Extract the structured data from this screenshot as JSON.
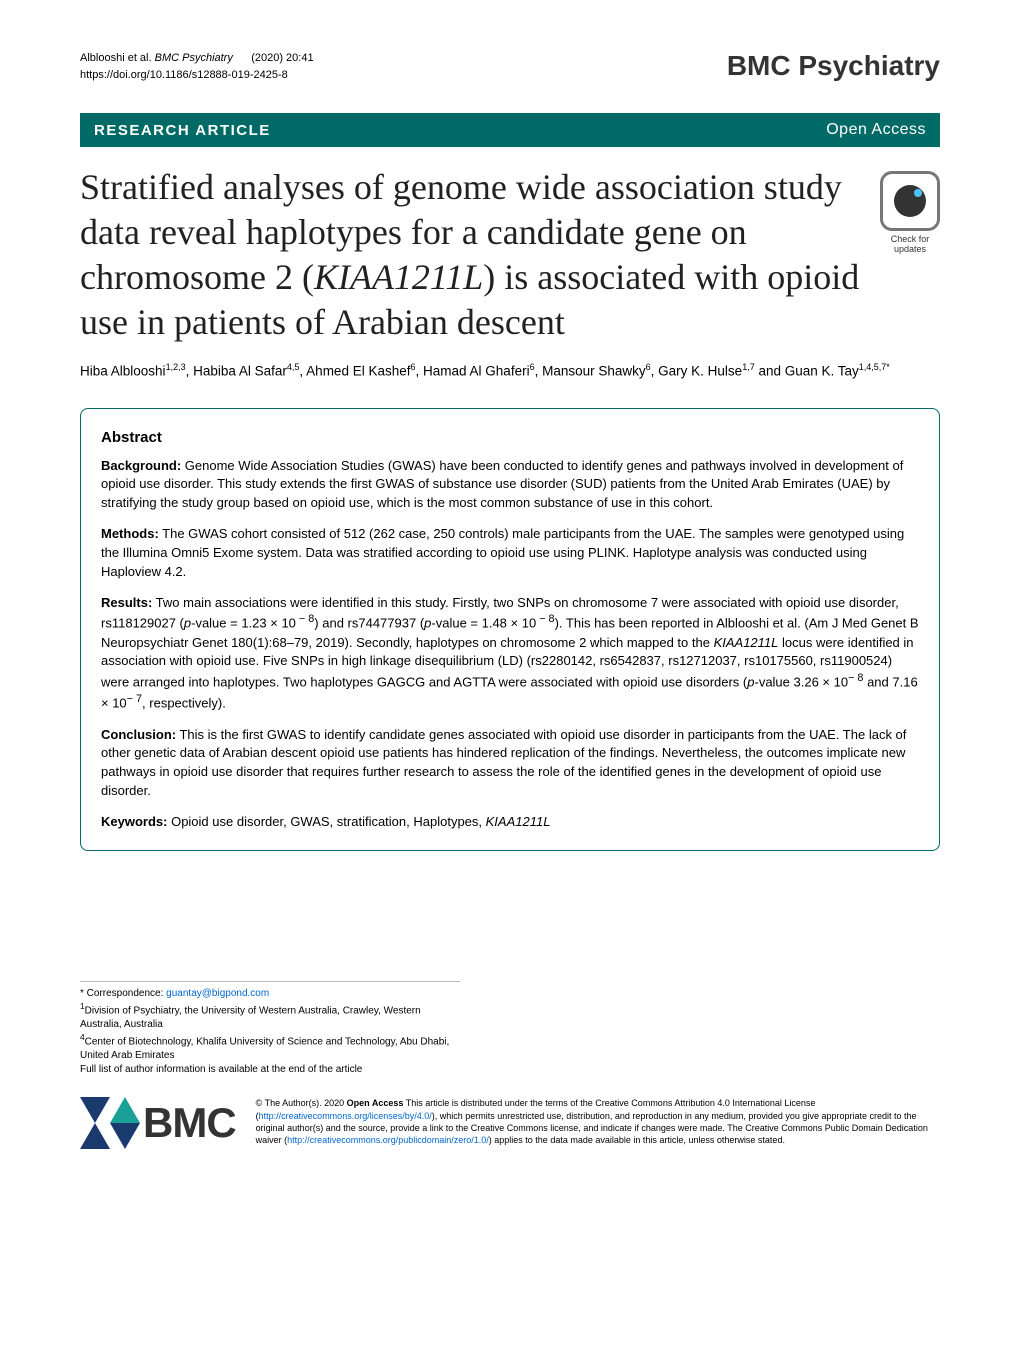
{
  "header": {
    "citation_authors": "Alblooshi et al.",
    "journal_name": "BMC Psychiatry",
    "citation_year_vol": "(2020) 20:41",
    "doi": "https://doi.org/10.1186/s12888-019-2425-8",
    "journal_logo": "BMC Psychiatry"
  },
  "article_bar": {
    "type": "RESEARCH ARTICLE",
    "access": "Open Access"
  },
  "title": {
    "line1": "Stratified analyses of genome wide association study data reveal haplotypes for a candidate gene on chromosome 2 (",
    "gene": "KIAA1211L",
    "line2": ") is associated with opioid use in patients of Arabian descent"
  },
  "check_updates": {
    "line1": "Check for",
    "line2": "updates"
  },
  "authors": "Hiba Alblooshi",
  "authors_rest": ", Habiba Al Safar",
  "authors_sup1": "1,2,3",
  "authors_sup2": "4,5",
  "authors_name3": ", Ahmed El Kashef",
  "authors_sup3": "6",
  "authors_name4": ", Hamad Al Ghaferi",
  "authors_sup4": "6",
  "authors_name5": ", Mansour Shawky",
  "authors_sup5": "6",
  "authors_name6": ", Gary K. Hulse",
  "authors_sup6": "1,7",
  "authors_and": " and Guan K. Tay",
  "authors_sup7": "1,4,5,7*",
  "abstract": {
    "heading": "Abstract",
    "bg_label": "Background:",
    "bg": " Genome Wide Association Studies (GWAS) have been conducted to identify genes and pathways involved in development of opioid use disorder. This study extends the first GWAS of substance use disorder (SUD) patients from the United Arab Emirates (UAE) by stratifying the study group based on opioid use, which is the most common substance of use in this cohort.",
    "methods_label": "Methods:",
    "methods": " The GWAS cohort consisted of 512 (262 case, 250 controls) male participants from the UAE. The samples were genotyped using the Illumina Omni5 Exome system. Data was stratified according to opioid use using PLINK. Haplotype analysis was conducted using Haploview 4.2.",
    "results_label": "Results:",
    "results_p1": " Two main associations were identified in this study. Firstly, two SNPs on chromosome 7 were associated with opioid use disorder, rs118129027 (",
    "results_pv1": "p",
    "results_p2": "-value = 1.23 × 10",
    "results_exp1": " − 8",
    "results_p3": ") and rs74477937 (",
    "results_pv2": "p",
    "results_p4": "-value = 1.48 × 10",
    "results_exp2": " − 8",
    "results_p5": "). This has been reported in Alblooshi et al. (Am J Med Genet B Neuropsychiatr Genet 180(1):68–79, 2019). Secondly, haplotypes on chromosome 2 which mapped to the ",
    "results_gene": "KIAA1211L",
    "results_p6": " locus were identified in association with opioid use. Five SNPs in high linkage disequilibrium (LD) (rs2280142, rs6542837, rs12712037, rs10175560, rs11900524) were arranged into haplotypes. Two haplotypes GAGCG and AGTTA were associated with opioid use disorders (",
    "results_pv3": "p",
    "results_p7": "-value 3.26 × 10",
    "results_exp3": "− 8",
    "results_p8": " and 7.16 × 10",
    "results_exp4": "− 7",
    "results_p9": ", respectively).",
    "conclusion_label": "Conclusion:",
    "conclusion": " This is the first GWAS to identify candidate genes associated with opioid use disorder in participants from the UAE. The lack of other genetic data of Arabian descent opioid use patients has hindered replication of the findings. Nevertheless, the outcomes implicate new pathways in opioid use disorder that requires further research to assess the role of the identified genes in the development of opioid use disorder.",
    "keywords_label": "Keywords:",
    "keywords": " Opioid use disorder, GWAS, stratification, Haplotypes, ",
    "keywords_gene": "KIAA1211L"
  },
  "footer": {
    "correspondence_label": "* Correspondence: ",
    "correspondence_email": "guantay@bigpond.com",
    "aff1_sup": "1",
    "aff1": "Division of Psychiatry, the University of Western Australia, Crawley, Western Australia, Australia",
    "aff4_sup": "4",
    "aff4": "Center of Biotechnology, Khalifa University of Science and Technology, Abu Dhabi, United Arab Emirates",
    "full_list": "Full list of author information is available at the end of the article"
  },
  "bmc": {
    "logo_text": "BMC"
  },
  "license": {
    "text1": "© The Author(s). 2020 ",
    "oa_label": "Open Access",
    "text2": " This article is distributed under the terms of the Creative Commons Attribution 4.0 International License (",
    "link1": "http://creativecommons.org/licenses/by/4.0/",
    "text3": "), which permits unrestricted use, distribution, and reproduction in any medium, provided you give appropriate credit to the original author(s) and the source, provide a link to the Creative Commons license, and indicate if changes were made. The Creative Commons Public Domain Dedication waiver (",
    "link2": "http://creativecommons.org/publicdomain/zero/1.0/",
    "text4": ") applies to the data made available in this article, unless otherwise stated."
  }
}
